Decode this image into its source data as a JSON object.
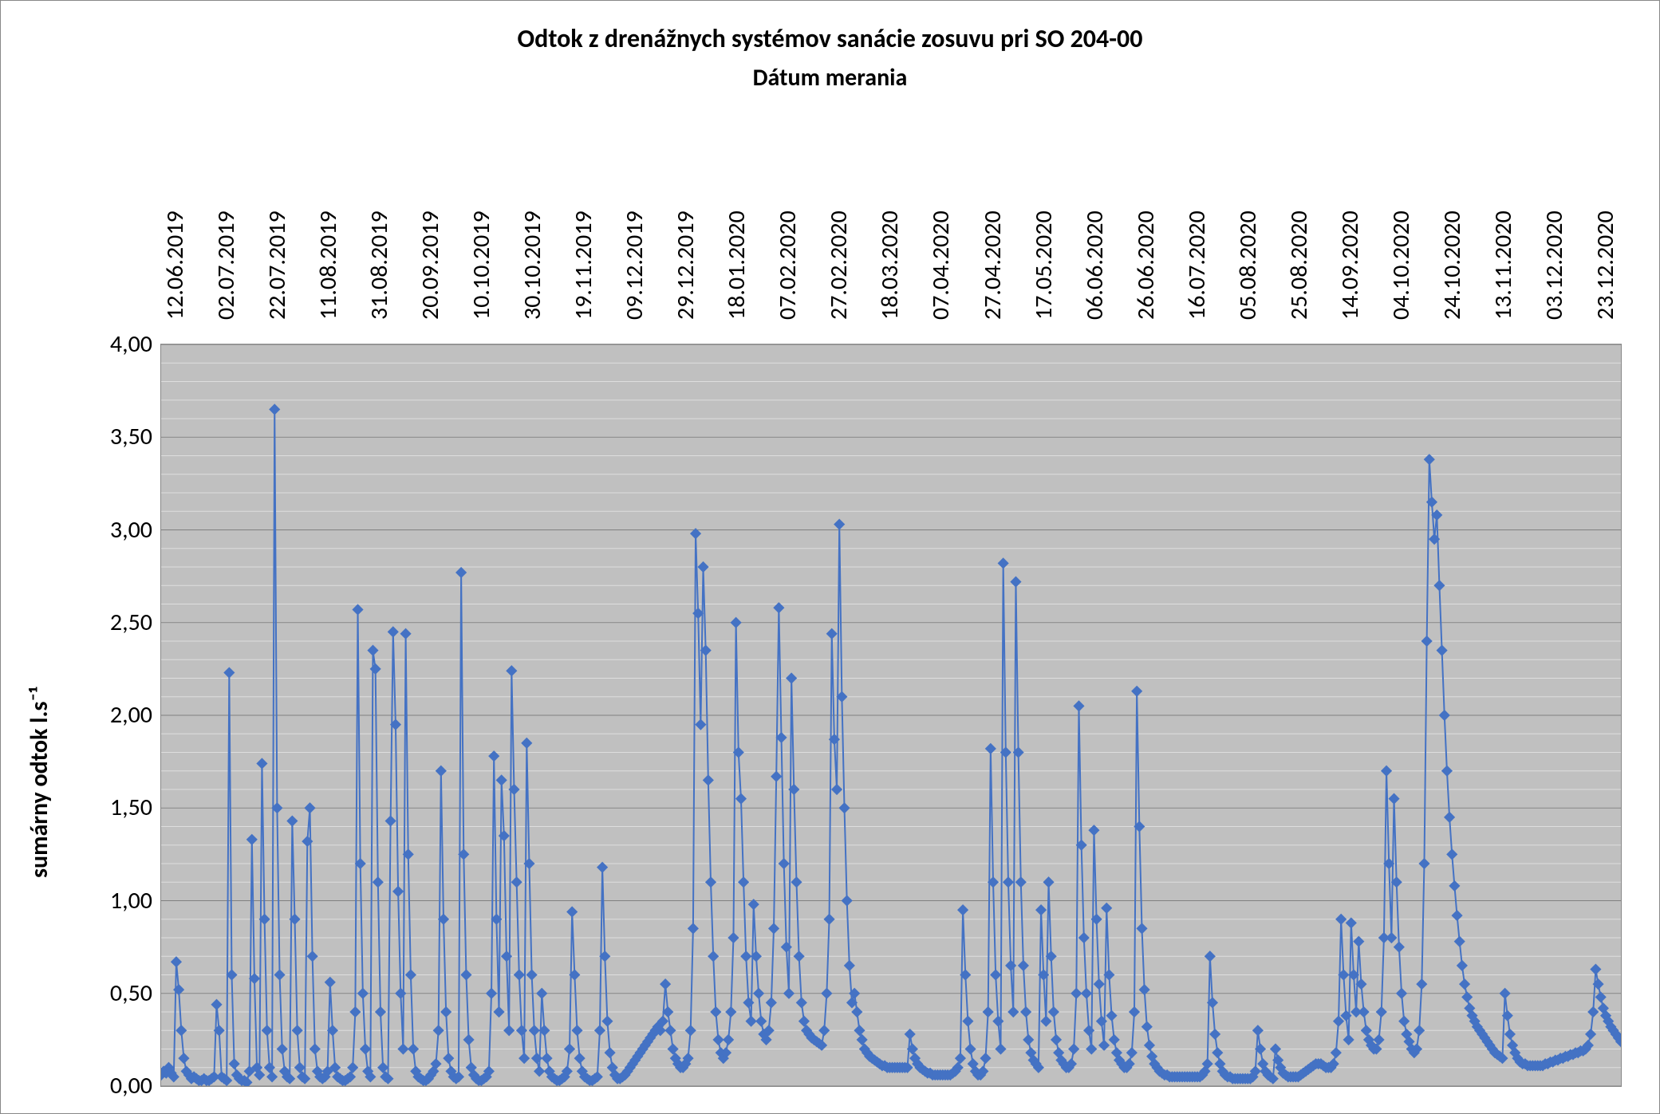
{
  "chart": {
    "type": "line-scatter",
    "title": "Odtok z drenážnych systémov sanácie zosuvu pri SO 204-00",
    "subtitle": "Dátum merania",
    "title_fontsize": 32,
    "subtitle_fontsize": 30,
    "ylabel": "sumárny odtok l.s⁻¹",
    "ylabel_fontsize": 30,
    "background_color": "#ffffff",
    "plot_bg_color": "#c0c0c0",
    "grid_major_color": "#808080",
    "grid_minor_color": "#dedede",
    "series_color": "#4472c4",
    "marker": "diamond",
    "marker_size": 10,
    "line_width": 2,
    "ylim": [
      0,
      4
    ],
    "ytick_step_major": 0.5,
    "ytick_step_minor": 0.1,
    "ytick_labels": [
      "0,00",
      "0,50",
      "1,00",
      "1,50",
      "2,00",
      "2,50",
      "3,00",
      "3,50",
      "4,00"
    ],
    "x_categories": [
      "12.06.2019",
      "02.07.2019",
      "22.07.2019",
      "11.08.2019",
      "31.08.2019",
      "20.09.2019",
      "10.10.2019",
      "30.10.2019",
      "19.11.2019",
      "09.12.2019",
      "29.12.2019",
      "18.01.2020",
      "07.02.2020",
      "27.02.2020",
      "18.03.2020",
      "07.04.2020",
      "27.04.2020",
      "17.05.2020",
      "06.06.2020",
      "26.06.2020",
      "16.07.2020",
      "05.08.2020",
      "25.08.2020",
      "14.09.2020",
      "04.10.2020",
      "24.10.2020",
      "13.11.2020",
      "03.12.2020",
      "23.12.2020"
    ],
    "values": [
      0.06,
      0.08,
      0.07,
      0.1,
      0.07,
      0.05,
      0.67,
      0.52,
      0.3,
      0.15,
      0.08,
      0.06,
      0.04,
      0.05,
      0.04,
      0.03,
      0.03,
      0.04,
      0.03,
      0.03,
      0.04,
      0.05,
      0.44,
      0.3,
      0.05,
      0.04,
      0.03,
      2.23,
      0.6,
      0.12,
      0.06,
      0.04,
      0.03,
      0.03,
      0.02,
      0.08,
      1.33,
      0.58,
      0.1,
      0.06,
      1.74,
      0.9,
      0.3,
      0.1,
      0.05,
      3.65,
      1.5,
      0.6,
      0.2,
      0.08,
      0.05,
      0.04,
      1.43,
      0.9,
      0.3,
      0.1,
      0.05,
      0.04,
      1.32,
      1.5,
      0.7,
      0.2,
      0.08,
      0.05,
      0.04,
      0.05,
      0.08,
      0.56,
      0.3,
      0.1,
      0.05,
      0.04,
      0.03,
      0.03,
      0.04,
      0.05,
      0.1,
      0.4,
      2.57,
      1.2,
      0.5,
      0.2,
      0.08,
      0.05,
      2.35,
      2.25,
      1.1,
      0.4,
      0.1,
      0.05,
      0.04,
      1.43,
      2.45,
      1.95,
      1.05,
      0.5,
      0.2,
      2.44,
      1.25,
      0.6,
      0.2,
      0.08,
      0.05,
      0.04,
      0.03,
      0.03,
      0.04,
      0.06,
      0.08,
      0.12,
      0.3,
      1.7,
      0.9,
      0.4,
      0.15,
      0.08,
      0.05,
      0.04,
      0.05,
      2.77,
      1.25,
      0.6,
      0.25,
      0.1,
      0.06,
      0.04,
      0.03,
      0.03,
      0.04,
      0.05,
      0.08,
      0.5,
      1.78,
      0.9,
      0.4,
      1.65,
      1.35,
      0.7,
      0.3,
      2.24,
      1.6,
      1.1,
      0.6,
      0.3,
      0.15,
      1.85,
      1.2,
      0.6,
      0.3,
      0.15,
      0.08,
      0.5,
      0.3,
      0.15,
      0.08,
      0.05,
      0.04,
      0.03,
      0.03,
      0.04,
      0.05,
      0.08,
      0.2,
      0.94,
      0.6,
      0.3,
      0.15,
      0.08,
      0.05,
      0.04,
      0.03,
      0.03,
      0.04,
      0.05,
      0.3,
      1.18,
      0.7,
      0.35,
      0.18,
      0.1,
      0.06,
      0.04,
      0.04,
      0.05,
      0.06,
      0.08,
      0.1,
      0.12,
      0.14,
      0.16,
      0.18,
      0.2,
      0.22,
      0.24,
      0.26,
      0.28,
      0.3,
      0.32,
      0.3,
      0.35,
      0.55,
      0.4,
      0.3,
      0.2,
      0.15,
      0.12,
      0.1,
      0.1,
      0.12,
      0.15,
      0.3,
      0.85,
      2.98,
      2.55,
      1.95,
      2.8,
      2.35,
      1.65,
      1.1,
      0.7,
      0.4,
      0.25,
      0.18,
      0.15,
      0.18,
      0.25,
      0.4,
      0.8,
      2.5,
      1.8,
      1.55,
      1.1,
      0.7,
      0.45,
      0.35,
      0.98,
      0.7,
      0.5,
      0.35,
      0.28,
      0.25,
      0.3,
      0.45,
      0.85,
      1.67,
      2.58,
      1.88,
      1.2,
      0.75,
      0.5,
      2.2,
      1.6,
      1.1,
      0.7,
      0.45,
      0.35,
      0.3,
      0.28,
      0.26,
      0.25,
      0.24,
      0.23,
      0.22,
      0.3,
      0.5,
      0.9,
      2.44,
      1.87,
      1.6,
      3.03,
      2.1,
      1.5,
      1.0,
      0.65,
      0.45,
      0.5,
      0.4,
      0.3,
      0.25,
      0.2,
      0.18,
      0.16,
      0.15,
      0.14,
      0.13,
      0.12,
      0.11,
      0.11,
      0.1,
      0.1,
      0.1,
      0.1,
      0.1,
      0.1,
      0.1,
      0.1,
      0.1,
      0.28,
      0.2,
      0.15,
      0.12,
      0.1,
      0.09,
      0.08,
      0.07,
      0.07,
      0.06,
      0.06,
      0.06,
      0.06,
      0.06,
      0.06,
      0.06,
      0.06,
      0.07,
      0.08,
      0.1,
      0.15,
      0.95,
      0.6,
      0.35,
      0.2,
      0.12,
      0.08,
      0.06,
      0.06,
      0.08,
      0.15,
      0.4,
      1.82,
      1.1,
      0.6,
      0.35,
      0.2,
      2.82,
      1.8,
      1.1,
      0.65,
      0.4,
      2.72,
      1.8,
      1.1,
      0.65,
      0.4,
      0.25,
      0.18,
      0.14,
      0.12,
      0.1,
      0.95,
      0.6,
      0.35,
      1.1,
      0.7,
      0.4,
      0.25,
      0.18,
      0.14,
      0.12,
      0.1,
      0.1,
      0.12,
      0.2,
      0.5,
      2.05,
      1.3,
      0.8,
      0.5,
      0.3,
      0.2,
      1.38,
      0.9,
      0.55,
      0.35,
      0.22,
      0.96,
      0.6,
      0.38,
      0.25,
      0.18,
      0.14,
      0.12,
      0.1,
      0.1,
      0.12,
      0.18,
      0.4,
      2.13,
      1.4,
      0.85,
      0.52,
      0.32,
      0.22,
      0.16,
      0.12,
      0.1,
      0.08,
      0.07,
      0.06,
      0.06,
      0.05,
      0.05,
      0.05,
      0.05,
      0.05,
      0.05,
      0.05,
      0.05,
      0.05,
      0.05,
      0.05,
      0.05,
      0.05,
      0.06,
      0.08,
      0.12,
      0.7,
      0.45,
      0.28,
      0.18,
      0.12,
      0.08,
      0.06,
      0.05,
      0.05,
      0.04,
      0.04,
      0.04,
      0.04,
      0.04,
      0.04,
      0.04,
      0.04,
      0.05,
      0.08,
      0.3,
      0.2,
      0.12,
      0.08,
      0.06,
      0.05,
      0.04,
      0.2,
      0.14,
      0.1,
      0.07,
      0.06,
      0.05,
      0.05,
      0.05,
      0.05,
      0.05,
      0.06,
      0.07,
      0.08,
      0.09,
      0.1,
      0.11,
      0.12,
      0.12,
      0.12,
      0.11,
      0.1,
      0.1,
      0.1,
      0.12,
      0.18,
      0.35,
      0.9,
      0.6,
      0.38,
      0.25,
      0.88,
      0.6,
      0.4,
      0.78,
      0.55,
      0.4,
      0.3,
      0.25,
      0.22,
      0.2,
      0.2,
      0.25,
      0.4,
      0.8,
      1.7,
      1.2,
      0.8,
      1.55,
      1.1,
      0.75,
      0.5,
      0.35,
      0.28,
      0.24,
      0.2,
      0.18,
      0.2,
      0.3,
      0.55,
      1.2,
      2.4,
      3.38,
      3.15,
      2.95,
      3.08,
      2.7,
      2.35,
      2.0,
      1.7,
      1.45,
      1.25,
      1.08,
      0.92,
      0.78,
      0.65,
      0.55,
      0.48,
      0.42,
      0.38,
      0.35,
      0.32,
      0.3,
      0.28,
      0.26,
      0.24,
      0.22,
      0.2,
      0.18,
      0.17,
      0.16,
      0.15,
      0.5,
      0.38,
      0.28,
      0.22,
      0.18,
      0.15,
      0.13,
      0.12,
      0.12,
      0.11,
      0.11,
      0.11,
      0.11,
      0.11,
      0.11,
      0.11,
      0.12,
      0.12,
      0.13,
      0.13,
      0.14,
      0.14,
      0.15,
      0.15,
      0.16,
      0.16,
      0.17,
      0.17,
      0.18,
      0.18,
      0.19,
      0.19,
      0.2,
      0.22,
      0.28,
      0.4,
      0.63,
      0.55,
      0.48,
      0.42,
      0.38,
      0.35,
      0.32,
      0.3,
      0.28,
      0.26,
      0.24
    ]
  }
}
